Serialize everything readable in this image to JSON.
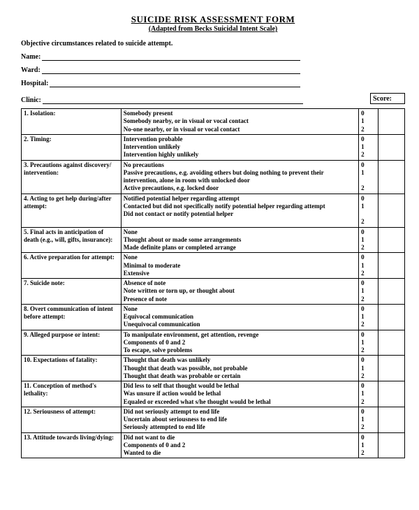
{
  "header": {
    "title": "SUICIDE RISK ASSESSMENT FORM",
    "subtitle": "(Adapted from Becks Suicidal Intent Scale)",
    "objective": "Objective circumstances related to suicide attempt."
  },
  "fields": {
    "name_label": "Name:",
    "ward_label": "Ward:",
    "hospital_label": "Hospital:",
    "clinic_label": "Clinic:",
    "score_label": "Score:"
  },
  "rows": [
    {
      "cat": "1. Isolation:",
      "opts": [
        "Somebody present",
        "Somebody nearby, or in visual or vocal contact",
        "No-one nearby, or in visual or vocal contact"
      ],
      "scores": [
        "0",
        "1",
        "2"
      ]
    },
    {
      "cat": "2. Timing:",
      "opts": [
        "Intervention probable",
        "Intervention unlikely",
        "Intervention highly unlikely"
      ],
      "scores": [
        "0",
        "1",
        "2"
      ]
    },
    {
      "cat": "3. Precautions against discovery/ intervention:",
      "opts": [
        "No precautions",
        "Passive precautions, e.g. avoiding others but doing nothing to prevent their intervention, alone in room with unlocked door",
        "Active precautions, e.g. locked door"
      ],
      "scores": [
        "0",
        "1",
        "",
        "2"
      ]
    },
    {
      "cat": "4. Acting to get help during/after attempt:",
      "opts": [
        "Notified potential helper regarding attempt",
        "Contacted but did not specifically notify potential helper regarding attempt",
        "Did not contact or notify potential helper"
      ],
      "scores": [
        "0",
        "1",
        "",
        "2"
      ]
    },
    {
      "cat": "5. Final acts in anticipation of death (e.g., will, gifts, insurance):",
      "opts": [
        "None",
        "Thought about or made some arrangements",
        "Made definite plans or completed arrange"
      ],
      "scores": [
        "0",
        "1",
        "2"
      ]
    },
    {
      "cat": "6. Active preparation for attempt:",
      "opts": [
        "None",
        "Minimal to moderate",
        "Extensive"
      ],
      "scores": [
        "0",
        "1",
        "2"
      ]
    },
    {
      "cat": "7. Suicide note:",
      "opts": [
        "Absence of note",
        "Note written or torn up, or thought about",
        "Presence of note"
      ],
      "scores": [
        "0",
        "1",
        "2"
      ]
    },
    {
      "cat": "8. Overt communication of intent before attempt:",
      "opts": [
        "None",
        "Equivocal communication",
        "Unequivocal communication"
      ],
      "scores": [
        "0",
        "1",
        "2"
      ]
    },
    {
      "cat": "9. Alleged purpose or intent:",
      "opts": [
        "To manipulate environment, get attention, revenge",
        "Components of 0 and 2",
        "To escape, solve problems"
      ],
      "scores": [
        "0",
        "1",
        "2"
      ]
    },
    {
      "cat": "10. Expectations of fatality:",
      "opts": [
        "Thought that death was unlikely",
        "Thought that death was possible, not probable",
        "Thought that death was probable or certain"
      ],
      "scores": [
        "0",
        "1",
        "2"
      ]
    },
    {
      "cat": "11. Conception of method's lethality:",
      "opts": [
        "Did less to self that thought would be lethal",
        "Was unsure if action would be lethal",
        "Equaled or exceeded what s/he thought would be lethal"
      ],
      "scores": [
        "0",
        "1",
        "2"
      ]
    },
    {
      "cat": "12. Seriousness of attempt:",
      "opts": [
        "Did not seriously attempt to end life",
        "Uncertain about seriousness to end life",
        "Seriously attempted to end life"
      ],
      "scores": [
        "0",
        "1",
        "2"
      ]
    },
    {
      "cat": "13. Attitude towards living/dying:",
      "opts": [
        "Did not want to die",
        "Components of 0 and 2",
        "Wanted to die"
      ],
      "scores": [
        "0",
        "1",
        "2"
      ]
    }
  ]
}
